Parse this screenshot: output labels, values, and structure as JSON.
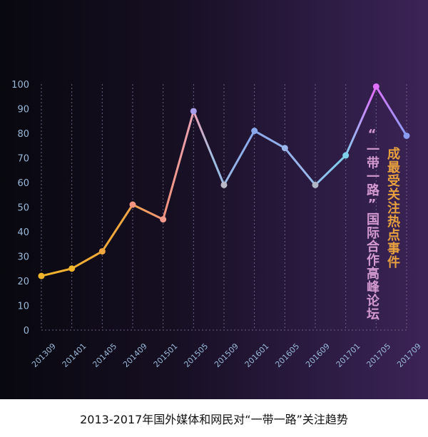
{
  "chart_data": {
    "type": "line",
    "title": "",
    "xlabel": "",
    "ylabel": "",
    "categories": [
      "201309",
      "201401",
      "201405",
      "201409",
      "201501",
      "201505",
      "201509",
      "201601",
      "201605",
      "201609",
      "201701",
      "201705",
      "201709"
    ],
    "series": [
      {
        "values": [
          22,
          25,
          32,
          51,
          45,
          89,
          59,
          81,
          74,
          59,
          71,
          99,
          79
        ]
      }
    ],
    "ylim": [
      0,
      100
    ],
    "yticks": [
      0,
      10,
      20,
      30,
      40,
      50,
      60,
      70,
      80,
      90,
      100
    ],
    "grid": "vertical dashed",
    "legend": "none"
  },
  "annotation": {
    "line1": "“一带一路”国际合作高峰论坛",
    "line2": "成最受关注热点事件"
  },
  "caption": "2013-2017年国外媒体和网民对“一带一路”关注趋势",
  "colors": {
    "line_start": "#f0b52c",
    "line_mid": "#f29b8c",
    "line_cool": "#7cc6ea",
    "line_peak": "#e070ff",
    "tick_label": "#9ab8d8",
    "grid": "#6a6080",
    "annotation_left": "#d39ad0",
    "annotation_right": "#e8a13f"
  }
}
